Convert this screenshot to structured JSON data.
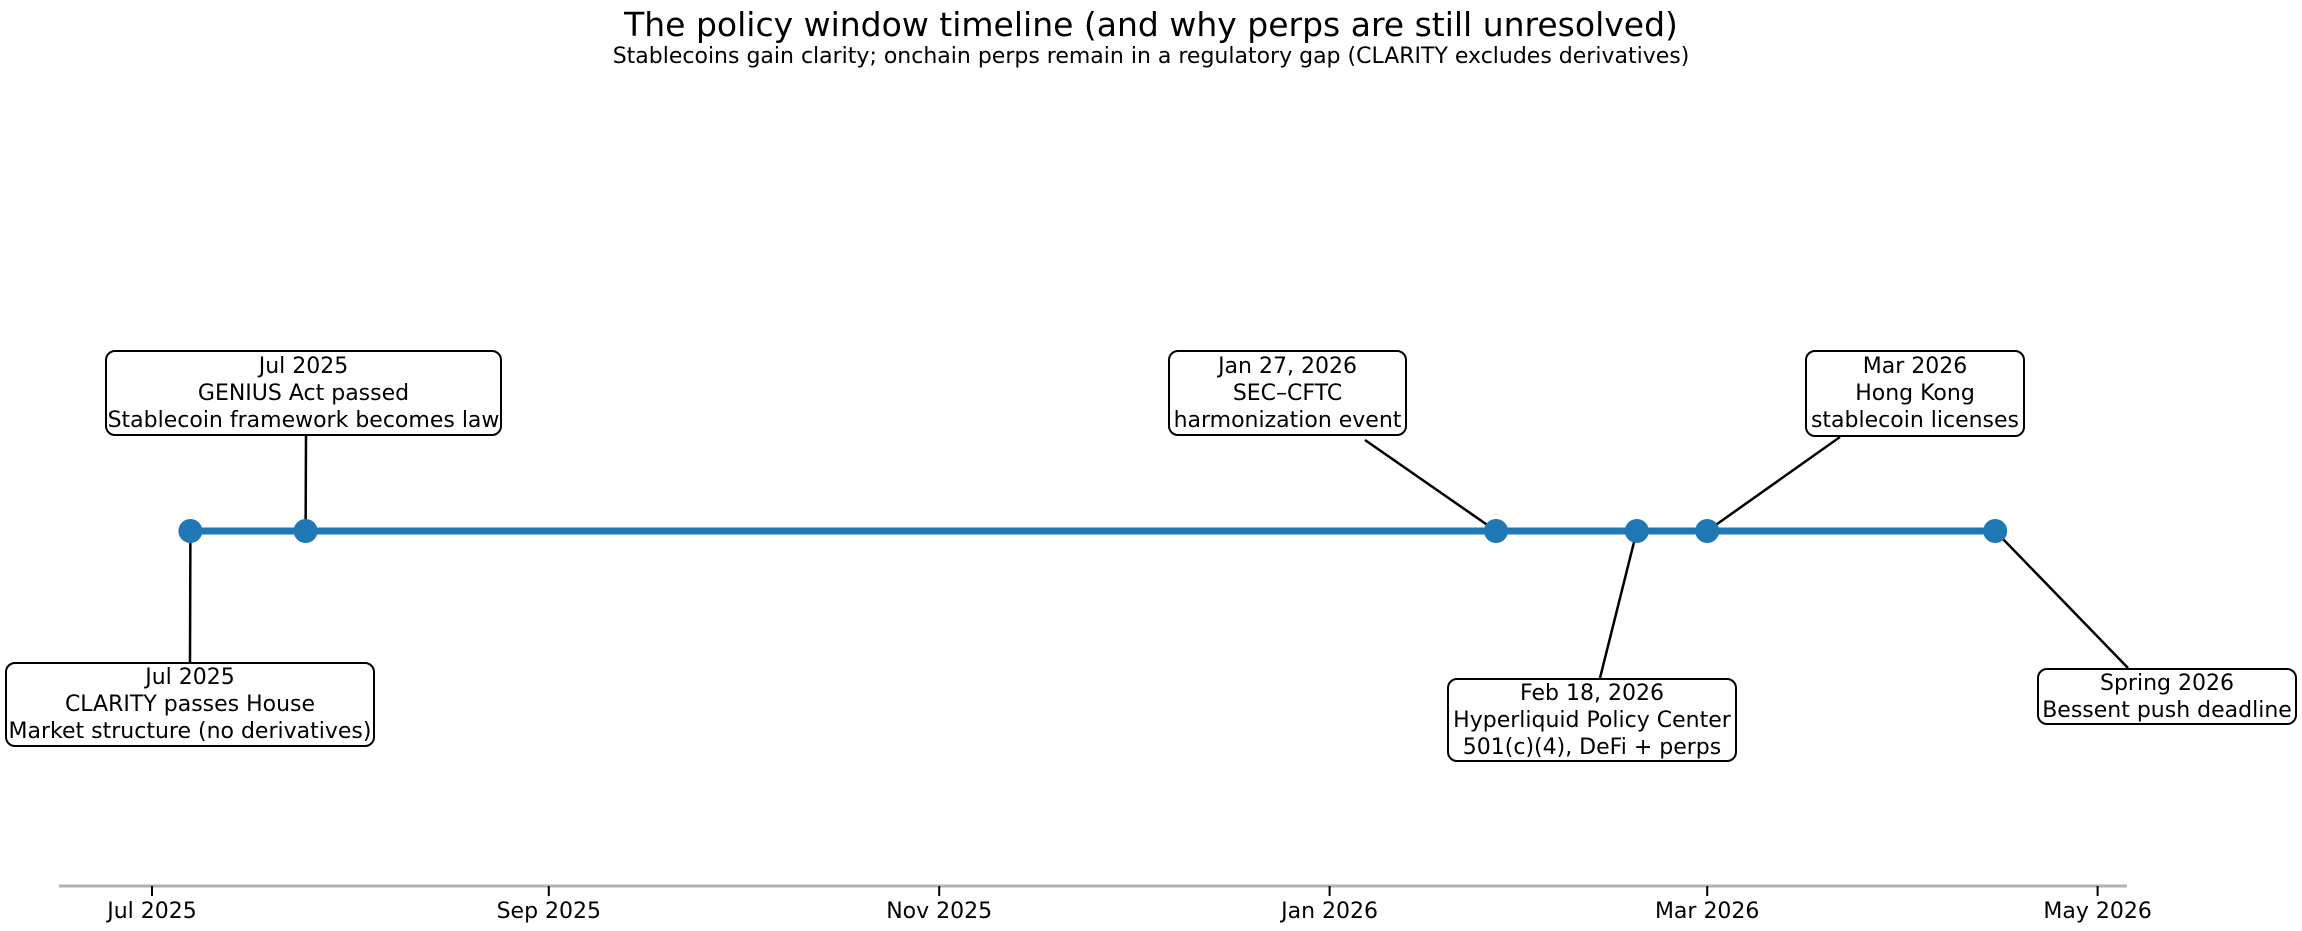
{
  "chart_data": {
    "type": "timeline",
    "title": "The policy window timeline (and why perps are still unresolved)",
    "subtitle": "Stablecoins gain clarity; onchain perps remain in a regulatory gap (CLARITY excludes derivatives)",
    "x_axis": {
      "ticks": [
        {
          "label": "Jul 2025",
          "date": "2025-07-01"
        },
        {
          "label": "Sep 2025",
          "date": "2025-09-01"
        },
        {
          "label": "Nov 2025",
          "date": "2025-11-01"
        },
        {
          "label": "Jan 2026",
          "date": "2026-01-01"
        },
        {
          "label": "Mar 2026",
          "date": "2026-03-01"
        },
        {
          "label": "May 2026",
          "date": "2026-05-01"
        }
      ],
      "range_start": "2025-06-16",
      "range_end": "2026-05-06",
      "grid": false
    },
    "events": [
      {
        "date": "2025-07-07",
        "side": "below",
        "lines": [
          "Jul 2025",
          "CLARITY passes House",
          "Market structure (no derivatives)"
        ]
      },
      {
        "date": "2025-07-25",
        "side": "above",
        "lines": [
          "Jul 2025",
          "GENIUS Act passed",
          "Stablecoin framework becomes law"
        ]
      },
      {
        "date": "2026-01-27",
        "side": "above",
        "lines": [
          "Jan 27, 2026",
          "SEC–CFTC",
          "harmonization event"
        ]
      },
      {
        "date": "2026-02-18",
        "side": "below",
        "lines": [
          "Feb 18, 2026",
          "Hyperliquid Policy Center",
          "501(c)(4), DeFi + perps"
        ]
      },
      {
        "date": "2026-03-01",
        "side": "above",
        "lines": [
          "Mar 2026",
          "Hong Kong",
          "stablecoin licenses"
        ]
      },
      {
        "date": "2026-04-15",
        "side": "below",
        "lines": [
          "Spring 2026",
          "Bessent push deadline"
        ]
      }
    ],
    "colors": {
      "timeline_line": "#1f77b4",
      "marker": "#1f77b4",
      "leader_line": "#000000",
      "box_border": "#000000",
      "box_fill": "#ffffff",
      "axis_line": "#b0b0b0",
      "tick_mark": "#000000",
      "text": "#000000"
    }
  }
}
